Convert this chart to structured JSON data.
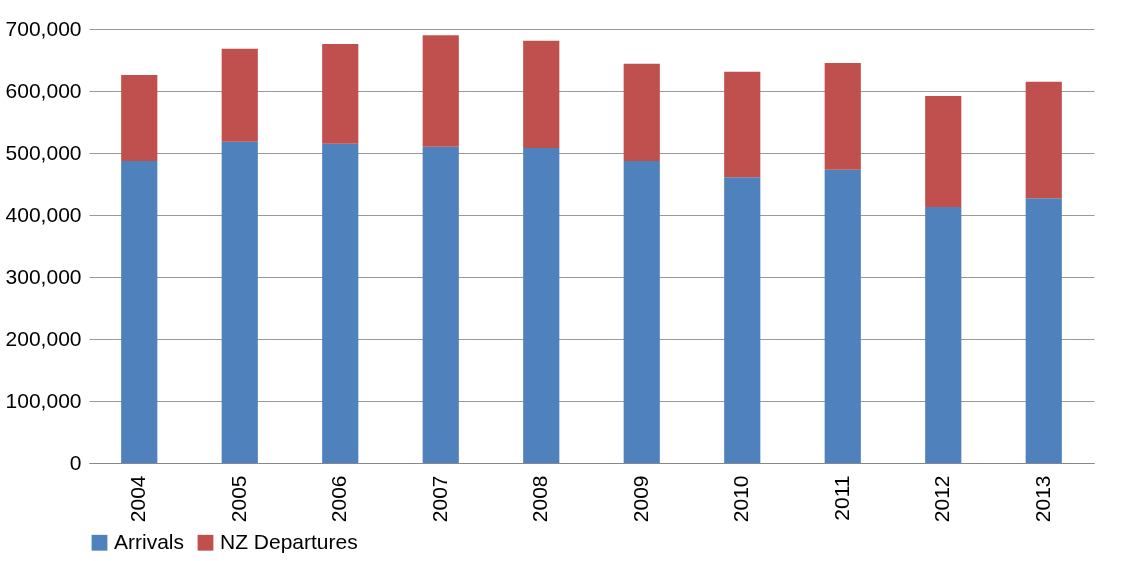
{
  "chart_data": {
    "type": "bar",
    "stacked": true,
    "categories": [
      "2004",
      "2005",
      "2006",
      "2007",
      "2008",
      "2009",
      "2010",
      "2011",
      "2012",
      "2013"
    ],
    "series": [
      {
        "name": "Arrivals",
        "color": "#4f81bd",
        "values": [
          487000,
          518000,
          515000,
          510000,
          508000,
          487000,
          461000,
          473000,
          413000,
          427000
        ]
      },
      {
        "name": "NZ Departures",
        "color": "#c0504d",
        "values": [
          139000,
          150000,
          161000,
          180000,
          173000,
          157000,
          170000,
          172000,
          179000,
          188000
        ]
      }
    ],
    "ylim": [
      0,
      700000
    ],
    "yticks": [
      {
        "value": 0,
        "label": "0"
      },
      {
        "value": 100000,
        "label": "100,000"
      },
      {
        "value": 200000,
        "label": "200,000"
      },
      {
        "value": 300000,
        "label": "300,000"
      },
      {
        "value": 400000,
        "label": "400,000"
      },
      {
        "value": 500000,
        "label": "500,000"
      },
      {
        "value": 600000,
        "label": "600,000"
      },
      {
        "value": 700000,
        "label": "700,000"
      }
    ],
    "grid": "y",
    "legend": "bottom"
  }
}
